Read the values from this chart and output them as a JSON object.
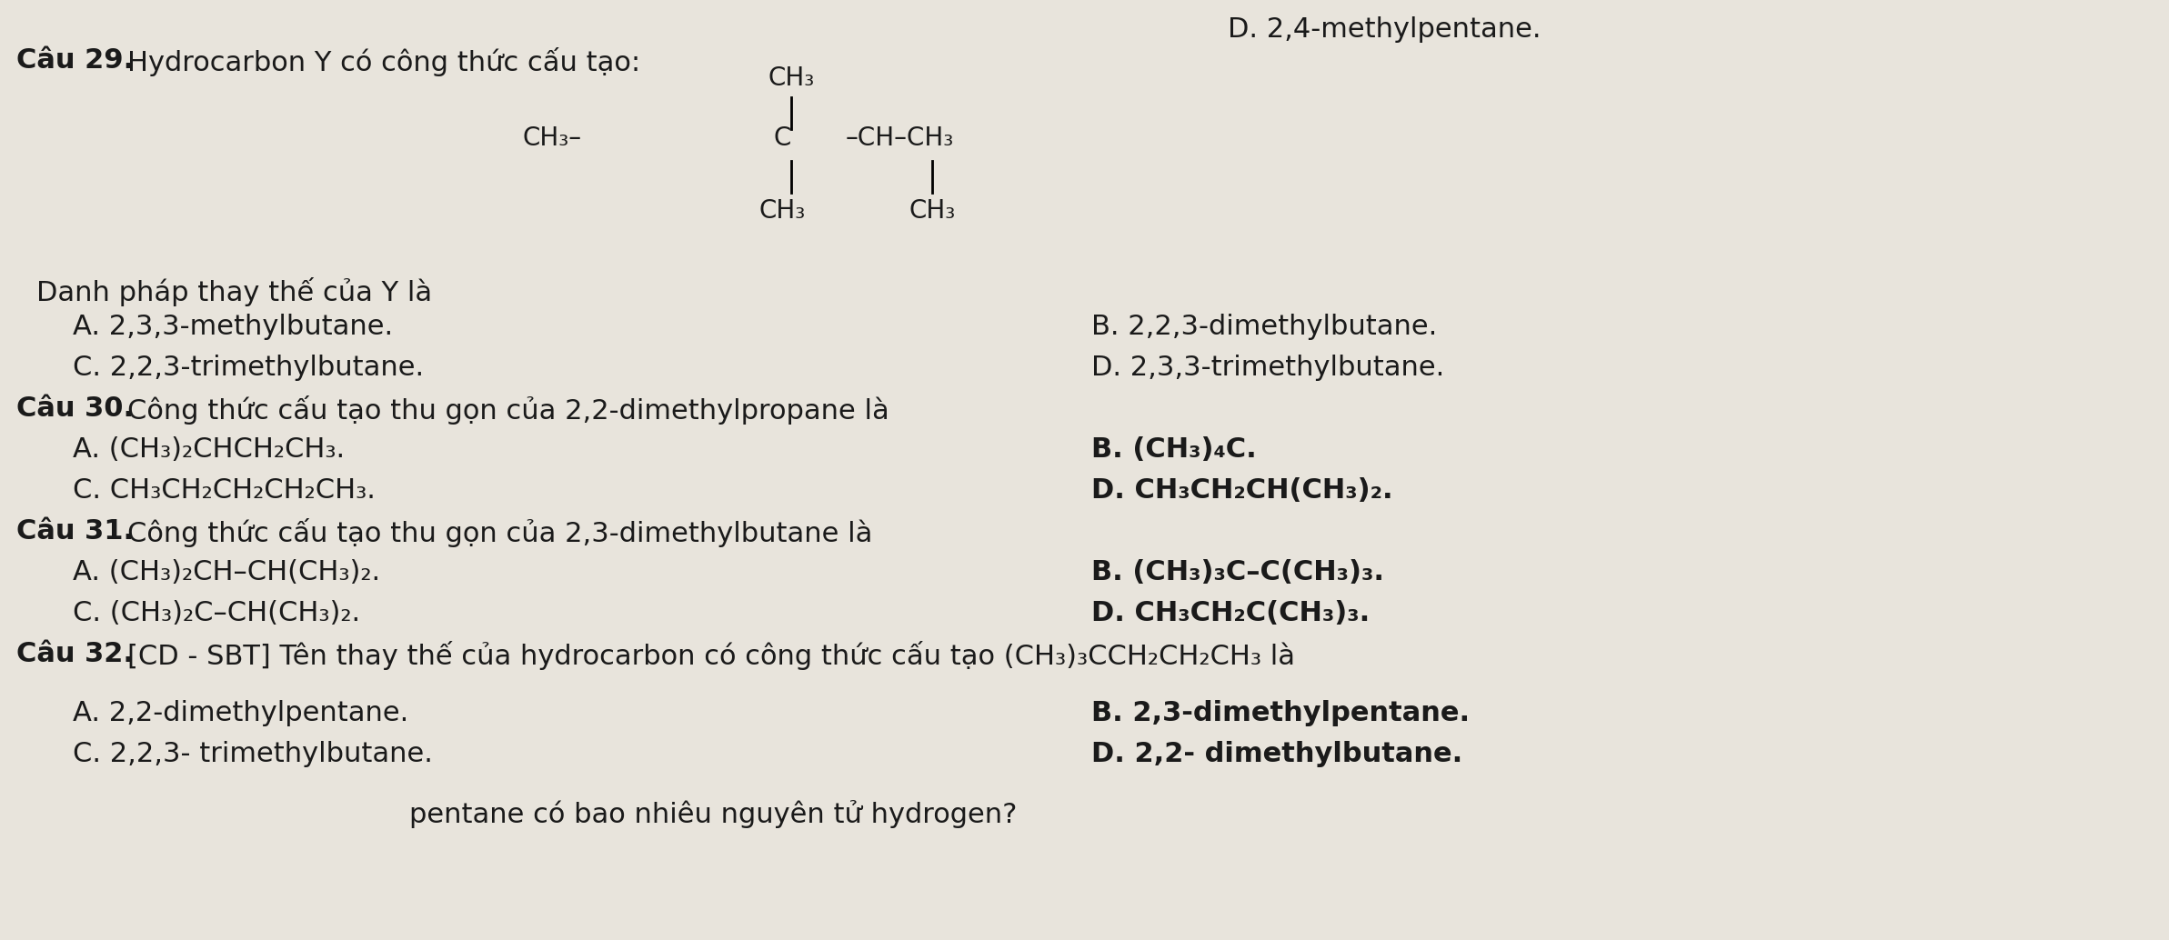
{
  "bg_color": "#e8e4dc",
  "text_color": "#1a1a1a",
  "title_d": "D. 2,4-methylpentane.",
  "q29_intro": "Câu 29. Hydrocarbon Y có công thức cấu tạo:",
  "q29_danh": "Danh pháp thay thế của Y là",
  "q29_A": "A. 2,3,3-methylbutane.",
  "q29_B": "B. 2,2,3-dimethylbutane.",
  "q29_C": "C. 2,2,3-trimethylbutane.",
  "q29_D": "D. 2,3,3-trimethylbutane.",
  "q30_intro": "Câu 30.",
  "q30_text": " Công thức cấu tạo thu gọn của 2,2-dimethylpropane là",
  "q30_A": "A. (CH₃)₂CHCH₂CH₃.",
  "q30_B": "B. (CH₃)₄C.",
  "q30_C": "C. CH₃CH₂CH₂CH₂CH₃.",
  "q30_D": "D. CH₃CH₂CH(CH₃)₂.",
  "q31_intro": "Câu 31.",
  "q31_text": " Công thức cấu tạo thu gọn của 2,3-dimethylbutane là",
  "q31_A": "A. (CH₃)₂CH–CH(CH₃)₂.",
  "q31_B": "B. (CH₃)₃C–C(CH₃)₃.",
  "q31_C": "C. (CH₃)₂C–CH(CH₃)₂.",
  "q31_D": "D. CH₃CH₂C(CH₃)₃.",
  "q32_intro": "Câu 32.",
  "q32_text": " [CD - SBT] Tên thay thế của hydrocarbon có công thức cấu tạo (CH₃)₃CCH₂CH₂CH₃ là",
  "q32_A": "A. 2,2-dimethylpentane.",
  "q32_B": "B. 2,3-dimethylpentane.",
  "q32_C": "C. 2,2,3- trimethylbutane.",
  "q32_D": "D. 2,2- dimethylbutane.",
  "q32_end": "pentane có bao nhiêu nguyên tử hydrogen?"
}
